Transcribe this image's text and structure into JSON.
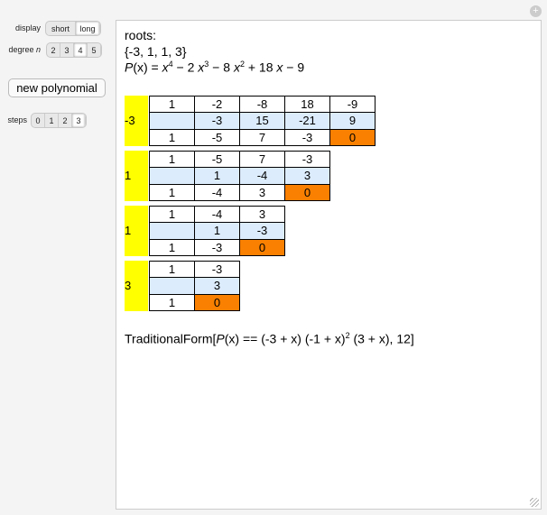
{
  "controls": {
    "display": {
      "label": "display",
      "options": [
        "short",
        "long"
      ],
      "selected": 1
    },
    "degree": {
      "label": "degree",
      "label_var": "n",
      "options": [
        2,
        3,
        4,
        5
      ],
      "selected": 2
    },
    "new_button": "new polynomial",
    "steps": {
      "label": "steps",
      "options": [
        0,
        1,
        2,
        3
      ],
      "selected": 3
    }
  },
  "output": {
    "roots_label": "roots:",
    "roots": "{-3, 1, 1, 3}",
    "polynomial": [
      {
        "t": "P",
        "s": "i"
      },
      {
        "t": "(x) = ",
        "s": "n"
      },
      {
        "t": "x",
        "s": "i"
      },
      {
        "t": "4",
        "s": "sup"
      },
      {
        "t": " − 2 ",
        "s": "n"
      },
      {
        "t": "x",
        "s": "i"
      },
      {
        "t": "3",
        "s": "sup"
      },
      {
        "t": " − 8 ",
        "s": "n"
      },
      {
        "t": "x",
        "s": "i"
      },
      {
        "t": "2",
        "s": "sup"
      },
      {
        "t": " + 18 ",
        "s": "n"
      },
      {
        "t": "x",
        "s": "i"
      },
      {
        "t": " − 9",
        "s": "n"
      }
    ],
    "division": [
      {
        "root": -3,
        "rows": [
          [
            1,
            -2,
            -8,
            18,
            -9
          ],
          [
            null,
            -3,
            15,
            -21,
            9
          ],
          [
            1,
            -5,
            7,
            -3,
            0
          ]
        ]
      },
      {
        "root": 1,
        "rows": [
          [
            1,
            -5,
            7,
            -3
          ],
          [
            null,
            1,
            -4,
            3
          ],
          [
            1,
            -4,
            3,
            0
          ]
        ]
      },
      {
        "root": 1,
        "rows": [
          [
            1,
            -4,
            3
          ],
          [
            null,
            1,
            -3
          ],
          [
            1,
            -3,
            0
          ]
        ]
      },
      {
        "root": 3,
        "rows": [
          [
            1,
            -3
          ],
          [
            null,
            3
          ],
          [
            1,
            0
          ]
        ]
      }
    ],
    "traditional_form": [
      {
        "t": "TraditionalForm[",
        "s": "n"
      },
      {
        "t": "P",
        "s": "i"
      },
      {
        "t": "(x) == (-3 + x) (-1 + x)",
        "s": "n"
      },
      {
        "t": "2",
        "s": "sup"
      },
      {
        "t": " (3 + x), 12]",
        "s": "n"
      }
    ]
  }
}
